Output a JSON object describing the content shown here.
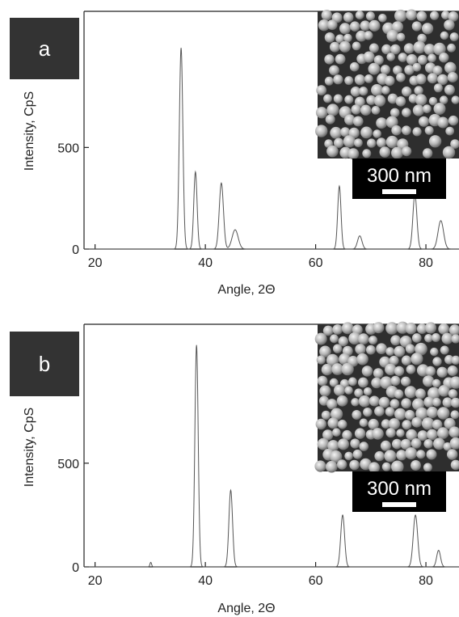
{
  "chart_data": [
    {
      "type": "line",
      "panel_label": "a",
      "xlabel": "Angle, 2Θ",
      "ylabel": "Intensity, CpS",
      "xlim": [
        18,
        86
      ],
      "ylim": [
        0,
        1170
      ],
      "x_ticks": [
        20,
        40,
        60,
        80
      ],
      "y_ticks": [
        0,
        500
      ],
      "grid": false,
      "peaks": [
        {
          "x": 35.6,
          "y": 990,
          "w": 0.32
        },
        {
          "x": 38.2,
          "y": 380,
          "w": 0.3
        },
        {
          "x": 42.9,
          "y": 325,
          "w": 0.38
        },
        {
          "x": 45.4,
          "y": 95,
          "w": 0.55
        },
        {
          "x": 64.3,
          "y": 310,
          "w": 0.3
        },
        {
          "x": 68.0,
          "y": 65,
          "w": 0.4
        },
        {
          "x": 78.0,
          "y": 270,
          "w": 0.36
        },
        {
          "x": 82.7,
          "y": 140,
          "w": 0.5
        }
      ],
      "inset": {
        "type": "SEM micrograph",
        "scale_bar_label": "300 nm"
      }
    },
    {
      "type": "line",
      "panel_label": "b",
      "xlabel": "Angle, 2Θ",
      "ylabel": "Intensity, CpS",
      "xlim": [
        18,
        86
      ],
      "ylim": [
        0,
        1170
      ],
      "x_ticks": [
        20,
        40,
        60,
        80
      ],
      "y_ticks": [
        0,
        500
      ],
      "grid": false,
      "peaks": [
        {
          "x": 30.1,
          "y": 22,
          "w": 0.15
        },
        {
          "x": 38.4,
          "y": 1070,
          "w": 0.3
        },
        {
          "x": 44.6,
          "y": 370,
          "w": 0.33
        },
        {
          "x": 64.9,
          "y": 250,
          "w": 0.35
        },
        {
          "x": 78.1,
          "y": 250,
          "w": 0.4
        },
        {
          "x": 82.3,
          "y": 80,
          "w": 0.35
        }
      ],
      "inset": {
        "type": "SEM micrograph",
        "scale_bar_label": "300 nm"
      }
    }
  ]
}
